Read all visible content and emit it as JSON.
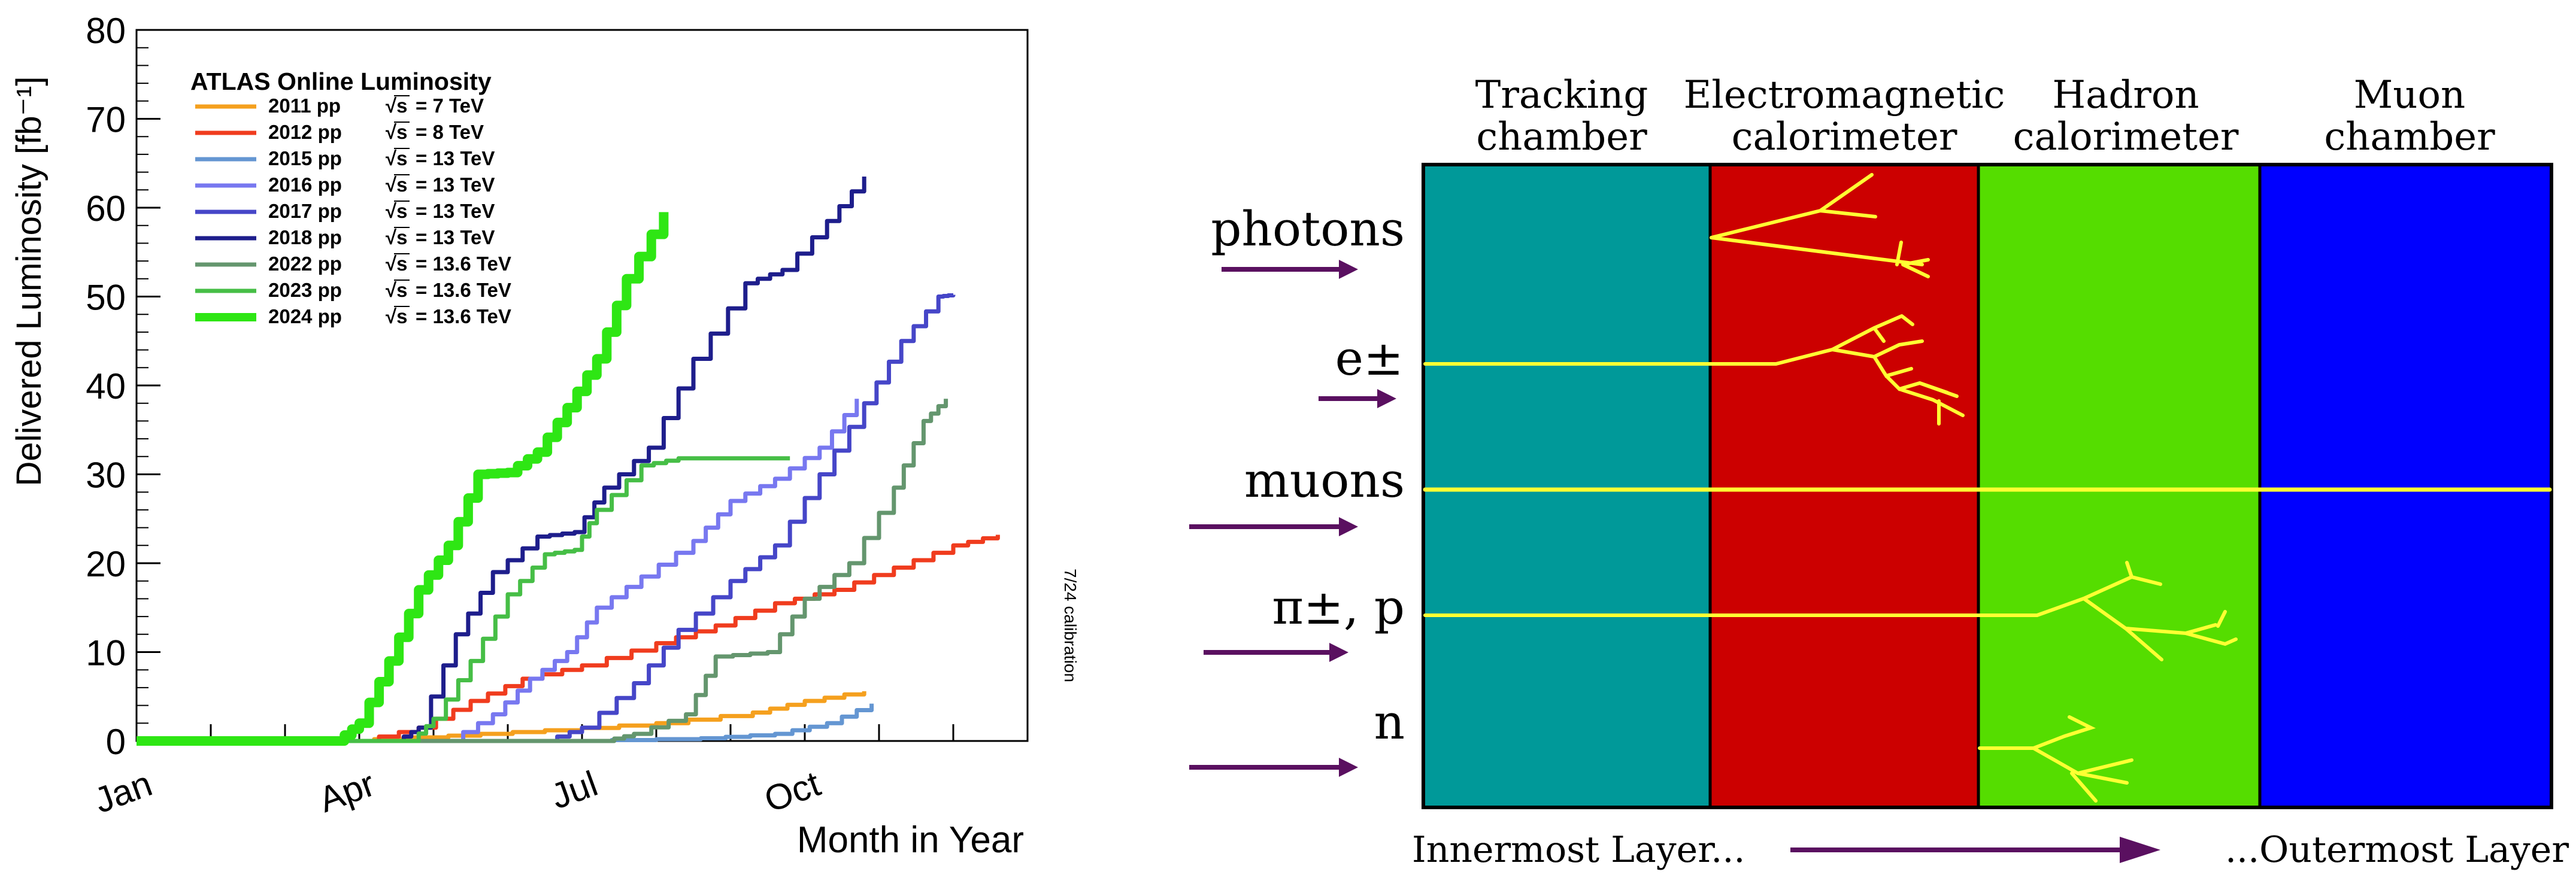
{
  "chart_data": [
    {
      "type": "line",
      "title": "ATLAS Online Luminosity",
      "xlabel": "Month in Year",
      "ylabel": "Delivered Luminosity [fb⁻¹]",
      "xlim": [
        0,
        12
      ],
      "ylim": [
        0,
        80
      ],
      "x_ticks": [
        {
          "value": 0,
          "label": "Jan"
        },
        {
          "value": 3,
          "label": "Apr"
        },
        {
          "value": 6,
          "label": "Jul"
        },
        {
          "value": 9,
          "label": "Oct"
        }
      ],
      "y_ticks": [
        0,
        10,
        20,
        30,
        40,
        50,
        60,
        70,
        80
      ],
      "annotation": "7/24 calibration",
      "series": [
        {
          "name": "2011 pp",
          "energy": "= 7 TeV",
          "color": "#f5a01e",
          "x": [
            0,
            2.7,
            4.2,
            5.5,
            7.0,
            8.3,
            9.0,
            9.8
          ],
          "y": [
            0,
            0,
            0.6,
            1.2,
            2.0,
            3.2,
            4.5,
            5.6
          ]
        },
        {
          "name": "2012 pp",
          "energy": "= 8 TeV",
          "color": "#f03c1e",
          "x": [
            0,
            3.0,
            3.8,
            4.5,
            5.2,
            6.0,
            7.0,
            7.8,
            8.6,
            9.4,
            10.2,
            11.0,
            11.6
          ],
          "y": [
            0,
            0,
            1.5,
            4.5,
            7.0,
            8.5,
            11.0,
            13.0,
            15.5,
            17.0,
            19.5,
            22.0,
            23.2
          ]
        },
        {
          "name": "2015 pp",
          "energy": "= 13 TeV",
          "color": "#6496d2",
          "x": [
            0,
            5.8,
            7.6,
            8.6,
            9.3,
            9.9
          ],
          "y": [
            0,
            0,
            0.3,
            0.8,
            2.0,
            4.2
          ]
        },
        {
          "name": "2016 pp",
          "energy": "= 13 TeV",
          "color": "#7878f0",
          "x": [
            0,
            4.2,
            4.8,
            5.3,
            5.8,
            6.2,
            6.8,
            7.5,
            8.0,
            8.6,
            9.2,
            9.7
          ],
          "y": [
            0,
            0,
            3.0,
            7.0,
            10.0,
            15.0,
            18.5,
            22.5,
            27.0,
            29.5,
            33.0,
            38.5
          ]
        },
        {
          "name": "2017 pp",
          "energy": "= 13 TeV",
          "color": "#4646c8",
          "x": [
            0,
            5.5,
            6.0,
            6.7,
            7.3,
            8.0,
            8.6,
            9.2,
            9.8,
            10.3,
            10.8,
            11.0
          ],
          "y": [
            0,
            0,
            1.5,
            6.5,
            12.5,
            18.0,
            22.0,
            30.0,
            38.0,
            45.0,
            50.0,
            50.2
          ]
        },
        {
          "name": "2018 pp",
          "energy": "= 13 TeV",
          "color": "#1e1e8c",
          "x": [
            0,
            3.5,
            3.8,
            4.3,
            4.8,
            5.4,
            5.9,
            6.3,
            6.9,
            7.5,
            8.2,
            8.7,
            9.3,
            9.8
          ],
          "y": [
            0,
            0,
            1.5,
            12.0,
            19.0,
            23.0,
            23.5,
            28.5,
            33.0,
            43.0,
            51.5,
            53.0,
            58.5,
            63.5
          ]
        },
        {
          "name": "2022 pp",
          "energy": "= 13.6 TeV",
          "color": "#64966e",
          "x": [
            0,
            6.3,
            6.7,
            7.4,
            7.8,
            8.5,
            9.0,
            9.6,
            10.2,
            10.6,
            10.9
          ],
          "y": [
            0,
            0,
            0.8,
            3.0,
            9.5,
            10.0,
            16.0,
            20.0,
            28.5,
            36.0,
            38.5
          ]
        },
        {
          "name": "2023 pp",
          "energy": "= 13.6 TeV",
          "color": "#46be46",
          "x": [
            0,
            3.7,
            4.0,
            4.5,
            5.0,
            5.5,
            5.9,
            6.2,
            6.8,
            7.3,
            8.8
          ],
          "y": [
            0,
            0,
            2.5,
            9.0,
            16.5,
            21.0,
            21.5,
            26.0,
            31.0,
            31.8,
            31.8
          ]
        },
        {
          "name": "2024 pp",
          "energy": "= 13.6 TeV",
          "color": "#2ee614",
          "x": [
            0,
            2.7,
            3.0,
            3.4,
            3.8,
            4.2,
            4.6,
            5.0,
            5.4,
            5.8,
            6.2,
            6.6,
            7.1
          ],
          "y": [
            0,
            0,
            2.0,
            9.0,
            17.0,
            22.0,
            30.0,
            30.2,
            32.5,
            37.5,
            43.0,
            52.0,
            59.5
          ]
        }
      ]
    },
    {
      "type": "diagram",
      "layers": [
        {
          "id": "tracking",
          "line1": "Tracking",
          "line2": "chamber",
          "color": "#009999"
        },
        {
          "id": "em",
          "line1": "Electromagnetic",
          "line2": "calorimeter",
          "color": "#cc0000"
        },
        {
          "id": "hadron",
          "line1": "Hadron",
          "line2": "calorimeter",
          "color": "#55dd00"
        },
        {
          "id": "muon",
          "line1": "Muon",
          "line2": "chamber",
          "color": "#0000ff"
        }
      ],
      "particles": [
        {
          "id": "photons",
          "label": "photons",
          "stops_in": "Electromagnetic calorimeter"
        },
        {
          "id": "electrons",
          "label": "e±",
          "stops_in": "Electromagnetic calorimeter"
        },
        {
          "id": "muons",
          "label": "muons",
          "stops_in": "passes through"
        },
        {
          "id": "pions",
          "label": "π±, p",
          "stops_in": "Hadron calorimeter"
        },
        {
          "id": "neutrons",
          "label": "n",
          "stops_in": "Hadron calorimeter"
        }
      ],
      "track_color": "#ffff33",
      "arrow_color": "#5a1060",
      "bottom_left": "Innermost Layer...",
      "bottom_right": "...Outermost Layer"
    }
  ]
}
